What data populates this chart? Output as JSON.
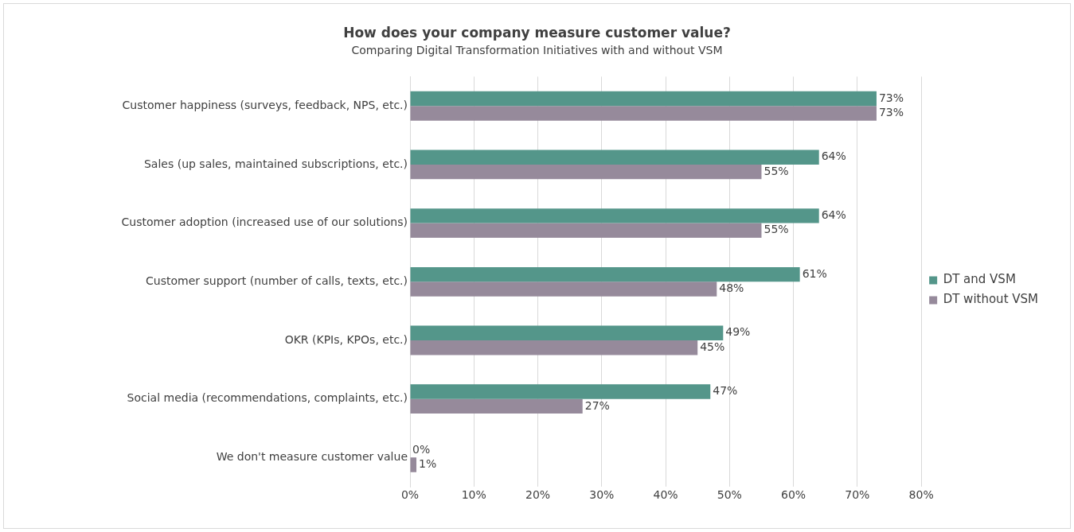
{
  "chart_data": {
    "type": "bar",
    "orientation": "horizontal",
    "title": "How does your company measure customer value?",
    "subtitle": "Comparing Digital Transformation Initiatives with and without VSM",
    "categories": [
      "Customer happiness (surveys, feedback, NPS, etc.)",
      "Sales (up sales, maintained subscriptions, etc.)",
      "Customer adoption (increased use of our solutions)",
      "Customer support (number of calls, texts, etc.)",
      "OKR (KPIs, KPOs, etc.)",
      "Social media (recommendations, complaints, etc.)",
      "We don't measure customer value"
    ],
    "series": [
      {
        "name": "DT and VSM",
        "color": "#54968a",
        "values": [
          73,
          64,
          64,
          61,
          49,
          47,
          0
        ],
        "value_labels": [
          "73%",
          "64%",
          "64%",
          "61%",
          "49%",
          "47%",
          "0%"
        ]
      },
      {
        "name": "DT without VSM",
        "color": "#968a9b",
        "values": [
          73,
          55,
          55,
          48,
          45,
          27,
          1
        ],
        "value_labels": [
          "73%",
          "55%",
          "55%",
          "48%",
          "45%",
          "27%",
          "1%"
        ]
      }
    ],
    "xlim": [
      0,
      80
    ],
    "xticks": [
      {
        "value": 0,
        "label": "0%"
      },
      {
        "value": 10,
        "label": "10%"
      },
      {
        "value": 20,
        "label": "20%"
      },
      {
        "value": 30,
        "label": "30%"
      },
      {
        "value": 40,
        "label": "40%"
      },
      {
        "value": 50,
        "label": "50%"
      },
      {
        "value": 60,
        "label": "60%"
      },
      {
        "value": 70,
        "label": "70%"
      },
      {
        "value": 80,
        "label": "80%"
      }
    ],
    "grid": "x",
    "legend": "right"
  }
}
